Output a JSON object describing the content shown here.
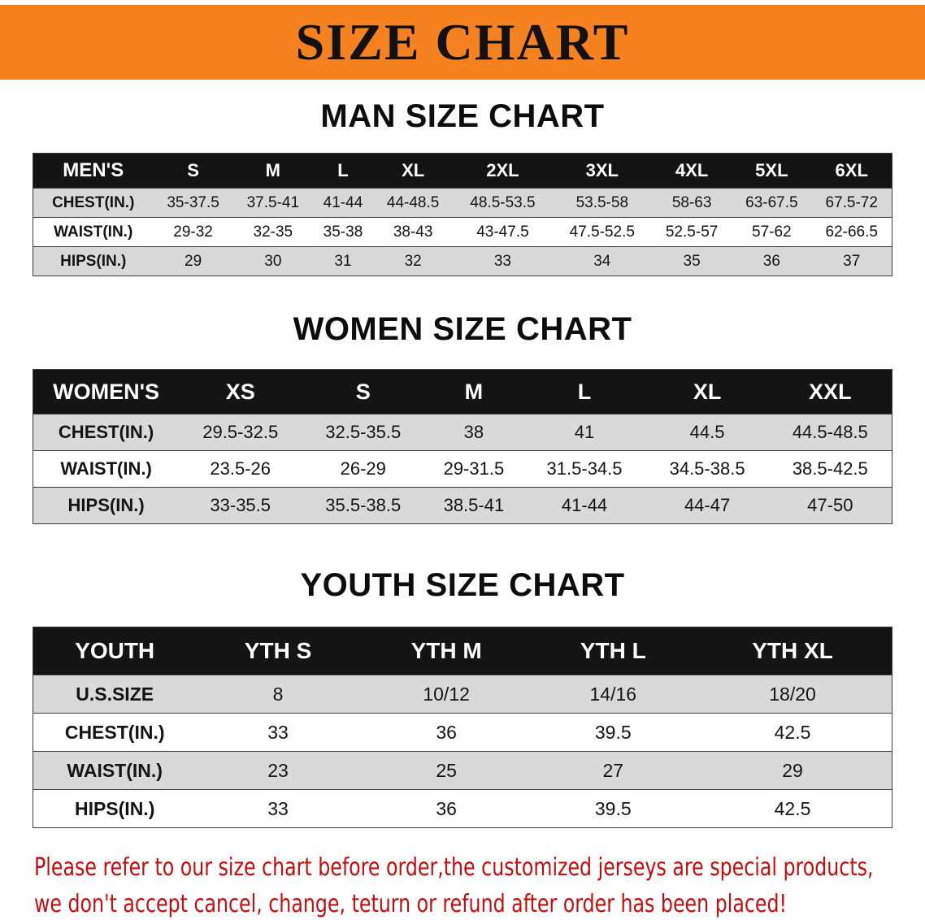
{
  "banner": {
    "title": "SIZE CHART"
  },
  "sections": {
    "men": {
      "heading": "MAN SIZE CHART",
      "table": {
        "header": [
          "MEN'S",
          "S",
          "M",
          "L",
          "XL",
          "2XL",
          "3XL",
          "4XL",
          "5XL",
          "6XL"
        ],
        "rows": [
          [
            "CHEST(IN.)",
            "35-37.5",
            "37.5-41",
            "41-44",
            "44-48.5",
            "48.5-53.5",
            "53.5-58",
            "58-63",
            "63-67.5",
            "67.5-72"
          ],
          [
            "WAIST(IN.)",
            "29-32",
            "32-35",
            "35-38",
            "38-43",
            "43-47.5",
            "47.5-52.5",
            "52.5-57",
            "57-62",
            "62-66.5"
          ],
          [
            "HIPS(IN.)",
            "29",
            "30",
            "31",
            "32",
            "33",
            "34",
            "35",
            "36",
            "37"
          ]
        ]
      }
    },
    "women": {
      "heading": "WOMEN SIZE CHART",
      "table": {
        "header": [
          "WOMEN'S",
          "XS",
          "S",
          "M",
          "L",
          "XL",
          "XXL"
        ],
        "rows": [
          [
            "CHEST(IN.)",
            "29.5-32.5",
            "32.5-35.5",
            "38",
            "41",
            "44.5",
            "44.5-48.5"
          ],
          [
            "WAIST(IN.)",
            "23.5-26",
            "26-29",
            "29-31.5",
            "31.5-34.5",
            "34.5-38.5",
            "38.5-42.5"
          ],
          [
            "HIPS(IN.)",
            "33-35.5",
            "35.5-38.5",
            "38.5-41",
            "41-44",
            "44-47",
            "47-50"
          ]
        ]
      }
    },
    "youth": {
      "heading": "YOUTH SIZE CHART",
      "table": {
        "header": [
          "YOUTH",
          "YTH S",
          "YTH M",
          "YTH L",
          "YTH XL"
        ],
        "rows": [
          [
            "U.S.SIZE",
            "8",
            "10/12",
            "14/16",
            "18/20"
          ],
          [
            "CHEST(IN.)",
            "33",
            "36",
            "39.5",
            "42.5"
          ],
          [
            "WAIST(IN.)",
            "23",
            "25",
            "27",
            "29"
          ],
          [
            "HIPS(IN.)",
            "33",
            "36",
            "39.5",
            "42.5"
          ]
        ]
      }
    }
  },
  "footer_note": {
    "line1": "Please refer to our size chart before order,the customized jerseys are special products,",
    "line2": "we don't accept cancel, change, teturn or refund after order has been placed!"
  },
  "colors": {
    "banner_bg": "#f5821f",
    "banner_text": "#111111",
    "table_header_bg": "#141414",
    "row_stripe_gray": "#d9d9d9",
    "note_red": "#c60d0d"
  }
}
